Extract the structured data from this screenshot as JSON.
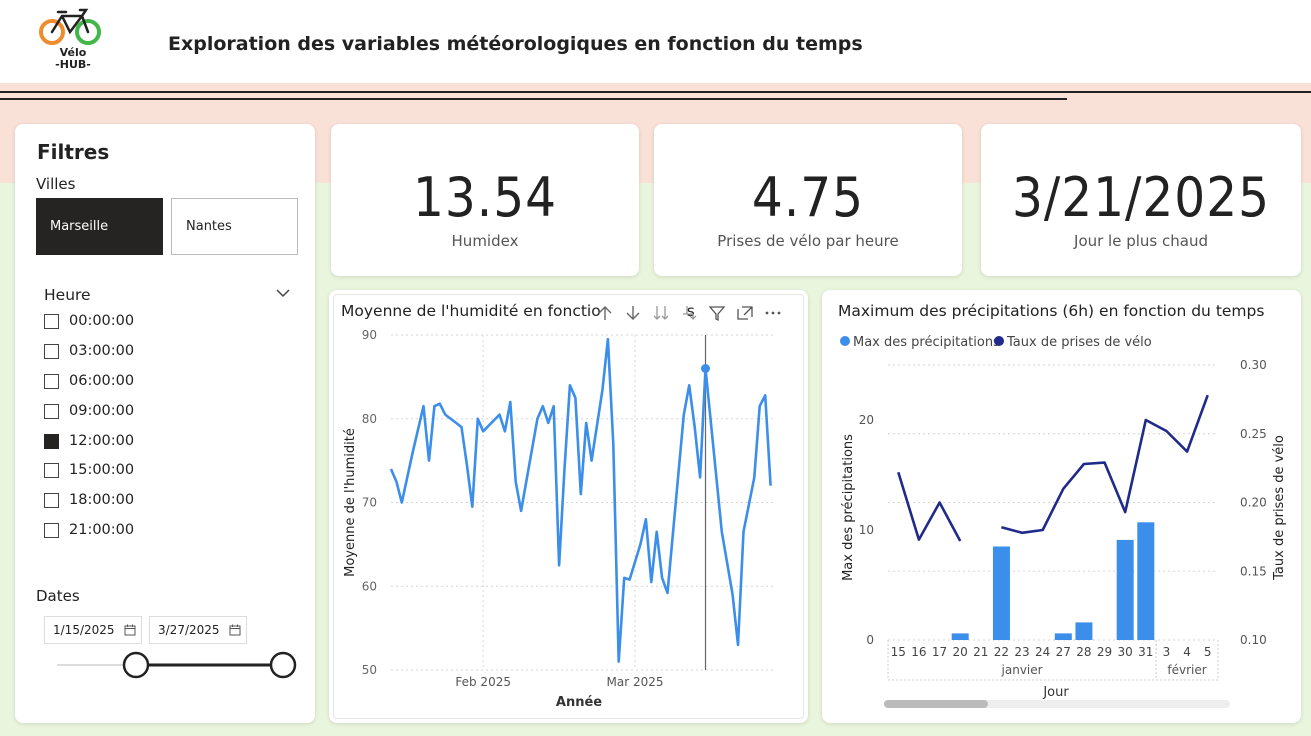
{
  "header": {
    "title": "Exploration des variables météorologiques en fonction du temps",
    "logo_line1": "Vélo",
    "logo_line2": "-HUB-"
  },
  "filters": {
    "title": "Filtres",
    "villes_label": "Villes",
    "villes": [
      {
        "label": "Marseille",
        "selected": true
      },
      {
        "label": "Nantes",
        "selected": false
      }
    ],
    "heure_label": "Heure",
    "heures": [
      {
        "label": "00:00:00",
        "checked": false
      },
      {
        "label": "03:00:00",
        "checked": false
      },
      {
        "label": "06:00:00",
        "checked": false
      },
      {
        "label": "09:00:00",
        "checked": false
      },
      {
        "label": "12:00:00",
        "checked": true
      },
      {
        "label": "15:00:00",
        "checked": false
      },
      {
        "label": "18:00:00",
        "checked": false
      },
      {
        "label": "21:00:00",
        "checked": false
      }
    ],
    "dates_label": "Dates",
    "date_start": "1/15/2025",
    "date_end": "3/27/2025"
  },
  "kpis": [
    {
      "value": "13.54",
      "caption": "Humidex"
    },
    {
      "value": "4.75",
      "caption": "Prises de vélo par heure"
    },
    {
      "value": "3/21/2025",
      "caption": "Jour le plus chaud"
    }
  ],
  "chart1": {
    "title_left": "Moyenne de l'humidité en fonctio",
    "title_right": "s"
  },
  "chart2": {
    "title": "Maximum des précipitations (6h) en fonction du temps"
  },
  "colors": {
    "accent": "#3b8eea",
    "navy": "#1f2a8a",
    "dark": "#252423"
  },
  "chart_data": [
    {
      "type": "line",
      "title": "Moyenne de l'humidité en fonction du temps",
      "xlabel": "Année",
      "ylabel": "Moyenne de l'humidité",
      "ylim": [
        50,
        90
      ],
      "yticks": [
        50,
        60,
        70,
        80,
        90
      ],
      "xticks": [
        {
          "label": "Feb 2025",
          "day": 17
        },
        {
          "label": "Mar 2025",
          "day": 45
        }
      ],
      "x_day_range": [
        0,
        71
      ],
      "series": [
        {
          "name": "Humidité",
          "points": [
            [
              0,
              74
            ],
            [
              1,
              72.5
            ],
            [
              2,
              70
            ],
            [
              4,
              76
            ],
            [
              6,
              81.5
            ],
            [
              7,
              75
            ],
            [
              8,
              81.5
            ],
            [
              9,
              81.8
            ],
            [
              10,
              80.5
            ],
            [
              12,
              79.5
            ],
            [
              13,
              79
            ],
            [
              14,
              74.5
            ],
            [
              15,
              69.5
            ],
            [
              16,
              80
            ],
            [
              17,
              78.5
            ],
            [
              20,
              80.5
            ],
            [
              21,
              78.5
            ],
            [
              22,
              82
            ],
            [
              23,
              72.5
            ],
            [
              24,
              69
            ],
            [
              27,
              80
            ],
            [
              28,
              81.5
            ],
            [
              29,
              79.5
            ],
            [
              30,
              81.5
            ],
            [
              31,
              62.5
            ],
            [
              32,
              74
            ],
            [
              33,
              84
            ],
            [
              34,
              82.5
            ],
            [
              35,
              71
            ],
            [
              36,
              79.5
            ],
            [
              37,
              75
            ],
            [
              39,
              83.5
            ],
            [
              40,
              89.5
            ],
            [
              41,
              77
            ],
            [
              42,
              51
            ],
            [
              43,
              61
            ],
            [
              44,
              60.8
            ],
            [
              46,
              65
            ],
            [
              47,
              68
            ],
            [
              48,
              60.5
            ],
            [
              49,
              66.5
            ],
            [
              50,
              61
            ],
            [
              51,
              59.2
            ],
            [
              54,
              80.5
            ],
            [
              55,
              84
            ],
            [
              56,
              79
            ],
            [
              57,
              73
            ],
            [
              58,
              86
            ],
            [
              61,
              66.5
            ],
            [
              63,
              59
            ],
            [
              64,
              53
            ],
            [
              65,
              66.5
            ],
            [
              67,
              73
            ],
            [
              68,
              81.5
            ],
            [
              69,
              82.8
            ],
            [
              70,
              72
            ]
          ]
        }
      ],
      "highlight": {
        "day": 58,
        "value": 86
      }
    },
    {
      "type": "bar+line",
      "title": "Maximum des précipitations (6h) en fonction du temps",
      "xlabel": "Jour",
      "ylabel_left": "Max des précipitations",
      "ylabel_right": "Taux de prises de vélo",
      "categories": [
        "15",
        "16",
        "17",
        "20",
        "21",
        "22",
        "23",
        "24",
        "27",
        "28",
        "29",
        "30",
        "31",
        "3",
        "4",
        "5"
      ],
      "groups": [
        {
          "label": "janvier",
          "from": 0,
          "to": 12
        },
        {
          "label": "février",
          "from": 13,
          "to": 15
        }
      ],
      "legend": [
        "Max des précipitations",
        "Taux de prises de vélo"
      ],
      "ylim_left": [
        0,
        25
      ],
      "yticks_left": [
        0,
        10,
        20
      ],
      "ylim_right": [
        0.1,
        0.3
      ],
      "yticks_right": [
        0.1,
        0.15,
        0.2,
        0.25,
        0.3
      ],
      "series": [
        {
          "name": "Max des précipitations",
          "type": "bar",
          "values": [
            0,
            0,
            0,
            0.6,
            0,
            8.5,
            0,
            0,
            0.6,
            1.6,
            0,
            9.1,
            10.7,
            0,
            0,
            0
          ]
        },
        {
          "name": "Taux de prises de vélo",
          "type": "line",
          "values": [
            0.222,
            0.173,
            0.2,
            0.172,
            null,
            0.182,
            0.178,
            0.18,
            0.21,
            0.228,
            0.229,
            0.193,
            0.26,
            0.252,
            0.237,
            0.278
          ]
        }
      ]
    }
  ]
}
